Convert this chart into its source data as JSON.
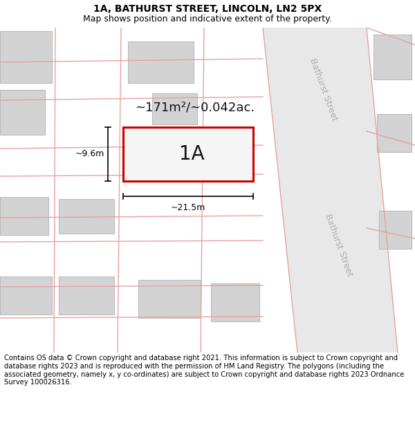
{
  "title": "1A, BATHURST STREET, LINCOLN, LN2 5PX",
  "subtitle": "Map shows position and indicative extent of the property.",
  "footer": "Contains OS data © Crown copyright and database right 2021. This information is subject to Crown copyright and database rights 2023 and is reproduced with the permission of HM Land Registry. The polygons (including the associated geometry, namely x, y co-ordinates) are subject to Crown copyright and database rights 2023 Ordnance Survey 100026316.",
  "bg_color": "#ffffff",
  "map_bg": "#ffffff",
  "road_fill": "#ebebeb",
  "road_stroke": "#e8a0a0",
  "building_fill": "#d3d3d3",
  "building_stroke": "#bbbbbb",
  "plot_stroke": "#cc0000",
  "plot_label": "1A",
  "area_label": "~171m²/~0.042ac.",
  "dim_h_label": "~9.6m",
  "dim_w_label": "~21.5m",
  "street_label": "Bathurst Street",
  "title_fontsize": 10,
  "subtitle_fontsize": 9,
  "footer_fontsize": 7.2,
  "label_fontsize": 13,
  "plot_label_fontsize": 20,
  "dim_fontsize": 9,
  "street_fontsize": 9
}
